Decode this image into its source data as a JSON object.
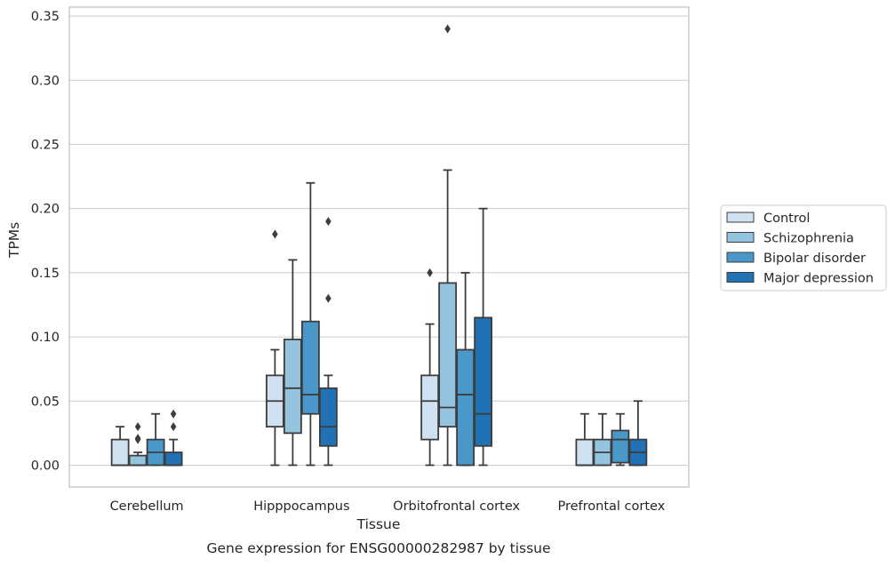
{
  "chart_data": {
    "type": "boxplot",
    "title": "",
    "caption": "Gene expression for ENSG00000282987 by tissue",
    "xlabel": "Tissue",
    "ylabel": "TPMs",
    "ylim": [
      -0.017,
      0.357
    ],
    "yticks": [
      0.0,
      0.05,
      0.1,
      0.15,
      0.2,
      0.25,
      0.3,
      0.35
    ],
    "ytick_labels": [
      "0.00",
      "0.05",
      "0.10",
      "0.15",
      "0.20",
      "0.25",
      "0.30",
      "0.35"
    ],
    "grid": "horizontal",
    "legend_position": "right",
    "categories": [
      "Cerebellum",
      "Hipppocampus",
      "Orbitofrontal cortex",
      "Prefrontal cortex"
    ],
    "series": [
      {
        "name": "Control",
        "color": "#d0e1f2",
        "boxes": [
          {
            "whislo": 0.0,
            "q1": 0.0,
            "med": 0.0,
            "q3": 0.02,
            "whishi": 0.03,
            "fliers": []
          },
          {
            "whislo": 0.0,
            "q1": 0.03,
            "med": 0.05,
            "q3": 0.07,
            "whishi": 0.09,
            "fliers": [
              0.18
            ]
          },
          {
            "whislo": 0.0,
            "q1": 0.02,
            "med": 0.05,
            "q3": 0.07,
            "whishi": 0.11,
            "fliers": [
              0.15
            ]
          },
          {
            "whislo": 0.0,
            "q1": 0.0,
            "med": 0.0,
            "q3": 0.02,
            "whishi": 0.04,
            "fliers": []
          }
        ]
      },
      {
        "name": "Schizophrenia",
        "color": "#94c4df",
        "boxes": [
          {
            "whislo": 0.0,
            "q1": 0.0,
            "med": 0.0,
            "q3": 0.0075,
            "whishi": 0.01,
            "fliers": [
              0.02,
              0.021,
              0.03
            ]
          },
          {
            "whislo": 0.0,
            "q1": 0.025,
            "med": 0.06,
            "q3": 0.098,
            "whishi": 0.16,
            "fliers": []
          },
          {
            "whislo": 0.0,
            "q1": 0.03,
            "med": 0.045,
            "q3": 0.142,
            "whishi": 0.23,
            "fliers": [
              0.34
            ]
          },
          {
            "whislo": 0.0,
            "q1": 0.0,
            "med": 0.01,
            "q3": 0.02,
            "whishi": 0.04,
            "fliers": []
          }
        ]
      },
      {
        "name": "Bipolar disorder",
        "color": "#4a98c9",
        "boxes": [
          {
            "whislo": 0.0,
            "q1": 0.0,
            "med": 0.01,
            "q3": 0.02,
            "whishi": 0.04,
            "fliers": []
          },
          {
            "whislo": 0.0,
            "q1": 0.04,
            "med": 0.055,
            "q3": 0.112,
            "whishi": 0.22,
            "fliers": []
          },
          {
            "whislo": 0.0,
            "q1": 0.0,
            "med": 0.055,
            "q3": 0.09,
            "whishi": 0.15,
            "fliers": []
          },
          {
            "whislo": 0.0,
            "q1": 0.002,
            "med": 0.02,
            "q3": 0.027,
            "whishi": 0.04,
            "fliers": []
          }
        ]
      },
      {
        "name": "Major depression",
        "color": "#2171b5",
        "boxes": [
          {
            "whislo": 0.0,
            "q1": 0.0,
            "med": 0.0,
            "q3": 0.01,
            "whishi": 0.02,
            "fliers": [
              0.03,
              0.04
            ]
          },
          {
            "whislo": 0.0,
            "q1": 0.015,
            "med": 0.03,
            "q3": 0.06,
            "whishi": 0.07,
            "fliers": [
              0.13,
              0.19
            ]
          },
          {
            "whislo": 0.0,
            "q1": 0.015,
            "med": 0.04,
            "q3": 0.115,
            "whishi": 0.2,
            "fliers": []
          },
          {
            "whislo": 0.0,
            "q1": 0.0,
            "med": 0.01,
            "q3": 0.02,
            "whishi": 0.05,
            "fliers": []
          }
        ]
      }
    ]
  }
}
